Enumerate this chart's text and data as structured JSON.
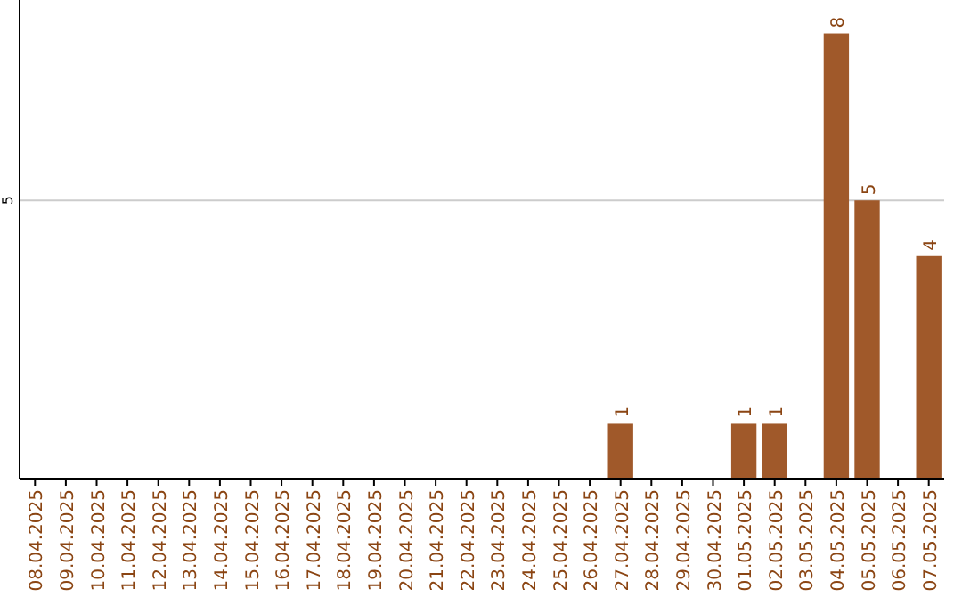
{
  "chart_data": {
    "type": "bar",
    "categories": [
      "08.04.2025",
      "09.04.2025",
      "10.04.2025",
      "11.04.2025",
      "12.04.2025",
      "13.04.2025",
      "14.04.2025",
      "15.04.2025",
      "16.04.2025",
      "17.04.2025",
      "18.04.2025",
      "19.04.2025",
      "20.04.2025",
      "21.04.2025",
      "22.04.2025",
      "23.04.2025",
      "24.04.2025",
      "25.04.2025",
      "26.04.2025",
      "27.04.2025",
      "28.04.2025",
      "29.04.2025",
      "30.04.2025",
      "01.05.2025",
      "02.05.2025",
      "03.05.2025",
      "04.05.2025",
      "05.05.2025",
      "06.05.2025",
      "07.05.2025"
    ],
    "values": [
      null,
      null,
      null,
      null,
      null,
      null,
      null,
      null,
      null,
      null,
      null,
      null,
      null,
      null,
      null,
      null,
      null,
      null,
      null,
      1,
      null,
      null,
      null,
      1,
      1,
      null,
      8,
      5,
      null,
      4
    ],
    "color": "#a0592a",
    "ylim": [
      0,
      8.6
    ],
    "yticks": [
      5
    ],
    "grid": "y",
    "data_labels": true
  }
}
